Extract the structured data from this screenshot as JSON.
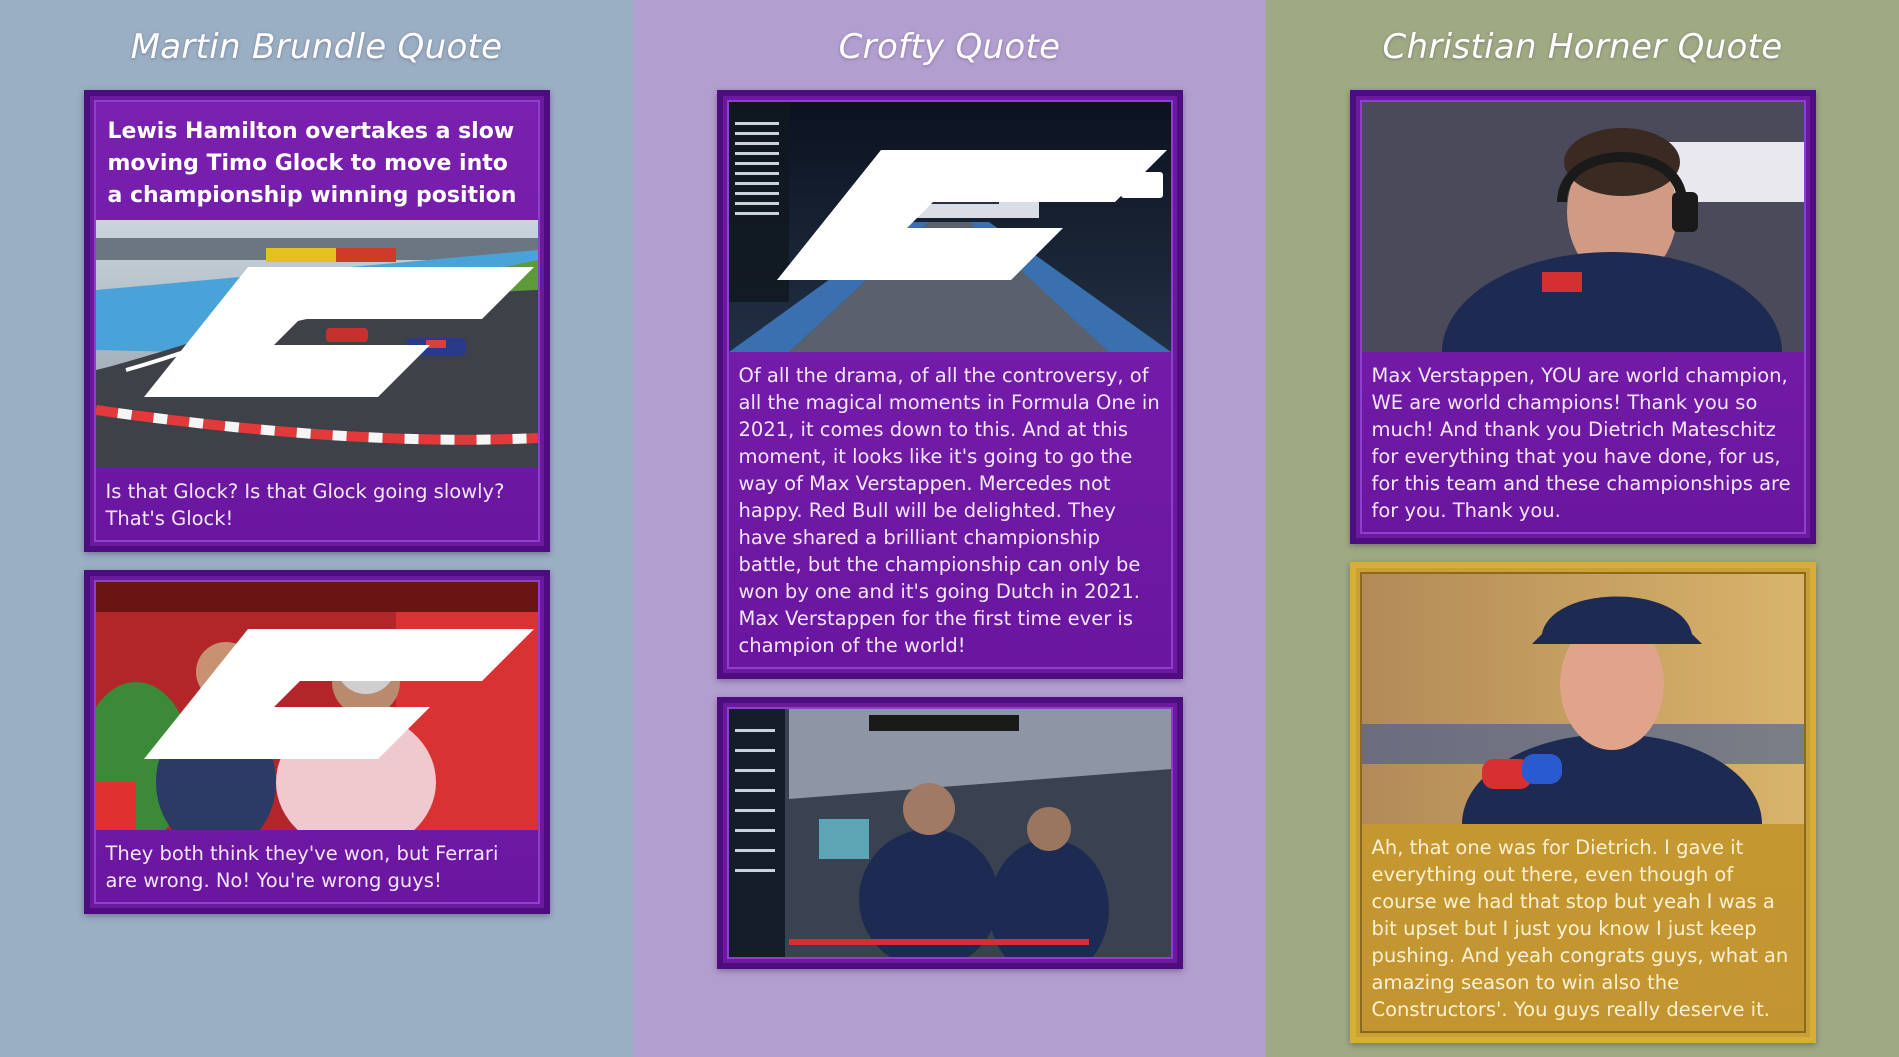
{
  "columns": [
    {
      "title": "Martin Brundle Quote",
      "cards": [
        {
          "headline": "Lewis Hamilton overtakes a slow moving Timo Glock to move into a championship winning position",
          "image": "race-track-corner-overtake",
          "quote": "Is that Glock? Is that Glock going slowly? That's Glock!"
        },
        {
          "image": "ferrari-garage-celebration",
          "quote": "They both think they've won, but Ferrari are wrong. No! You're wrong guys!"
        }
      ]
    },
    {
      "title": "Crofty Quote",
      "cards": [
        {
          "image": "night-race-final-straight",
          "quote": "Of all the drama, of all the controversy, of all the magical moments in Formula One in 2021, it comes down to this. And at this moment, it looks like it's going to go the way of Max Verstappen. Mercedes not happy. Red Bull will be delighted. They have shared a brilliant championship battle, but the championship can only be won by one and it's going Dutch in 2021. Max Verstappen for the first time ever is champion of the world!"
        },
        {
          "image": "red-bull-pit-wall-celebration"
        }
      ]
    },
    {
      "title": "Christian Horner Quote",
      "cards": [
        {
          "image": "team-principal-headset-portrait",
          "quote": "Max Verstappen, YOU are world champion, WE are world champions! Thank you so much! And thank you Dietrich Mateschitz for everything that you have done, for us, for this team and these championships are for you. Thank you."
        },
        {
          "image": "driver-interview-portrait",
          "quote": "Ah, that one was for Dietrich. I gave it everything out there, even though of course we had that stop but yeah I was a bit upset but I just you know I just keep pushing. And yeah congrats guys, what an amazing season to win also the Constructors'. You guys really deserve it."
        }
      ]
    }
  ],
  "colors": {
    "col1_bg": "#9aafc3",
    "col2_bg": "#b39fcf",
    "col3_bg": "#9faa83",
    "card_purple": "#6b1a9e",
    "card_gold": "#c9a033"
  }
}
